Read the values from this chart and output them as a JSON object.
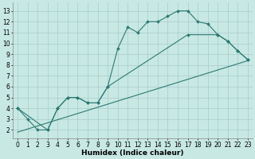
{
  "bg_color": "#c8e8e4",
  "grid_color": "#a8ccca",
  "line_color": "#2d7a72",
  "xlabel": "Humidex (Indice chaleur)",
  "xlabel_fontsize": 6.5,
  "tick_fontsize": 5.5,
  "xlim": [
    -0.5,
    23.5
  ],
  "ylim": [
    1.2,
    13.8
  ],
  "xticks": [
    0,
    1,
    2,
    3,
    4,
    5,
    6,
    7,
    8,
    9,
    10,
    11,
    12,
    13,
    14,
    15,
    16,
    17,
    18,
    19,
    20,
    21,
    22,
    23
  ],
  "yticks": [
    2,
    3,
    4,
    5,
    6,
    7,
    8,
    9,
    10,
    11,
    12,
    13
  ],
  "line1": {
    "x": [
      0,
      1,
      2,
      3,
      4,
      5,
      6,
      7,
      8,
      9,
      10,
      11,
      12,
      13,
      14,
      15,
      16,
      17,
      18,
      19,
      20,
      21,
      22,
      23
    ],
    "y": [
      4.0,
      3.0,
      2.0,
      2.0,
      4.0,
      5.0,
      5.0,
      4.5,
      4.5,
      6.0,
      9.5,
      11.5,
      11.0,
      12.0,
      12.0,
      12.5,
      13.0,
      13.0,
      12.0,
      11.8,
      10.8,
      10.2,
      9.3,
      8.5
    ],
    "has_marker": true
  },
  "line2": {
    "x": [
      0,
      3,
      4,
      5,
      6,
      7,
      8,
      9,
      17,
      20,
      21,
      22,
      23
    ],
    "y": [
      4.0,
      2.0,
      4.0,
      5.0,
      5.0,
      4.5,
      4.5,
      6.0,
      10.8,
      10.8,
      10.2,
      9.3,
      8.5
    ],
    "has_marker": true
  },
  "line3": {
    "x": [
      0,
      23
    ],
    "y": [
      1.8,
      8.4
    ],
    "has_marker": false
  }
}
